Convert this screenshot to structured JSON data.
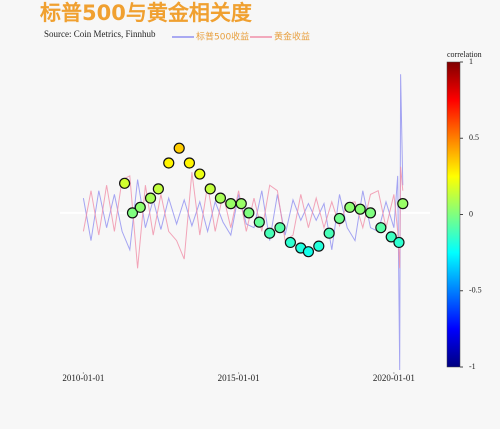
{
  "chart_data": {
    "type": "line-scatter",
    "title": "标普500与黄金相关度",
    "subtitle": "Source: Coin Metrics, Finnhub",
    "x": [
      "2010-01-01",
      "2010-04-01",
      "2010-07-01",
      "2010-10-01",
      "2011-01-01",
      "2011-04-01",
      "2011-07-01",
      "2011-10-01",
      "2012-01-01",
      "2012-04-01",
      "2012-07-01",
      "2012-10-01",
      "2013-01-01",
      "2013-04-01",
      "2013-07-01",
      "2013-10-01",
      "2014-01-01",
      "2014-04-01",
      "2014-07-01",
      "2014-10-01",
      "2015-01-01",
      "2015-04-01",
      "2015-07-01",
      "2015-10-01",
      "2016-01-01",
      "2016-04-01",
      "2016-07-01",
      "2016-10-01",
      "2017-01-01",
      "2017-04-01",
      "2017-07-01",
      "2017-10-01",
      "2018-01-01",
      "2018-04-01",
      "2018-07-01",
      "2018-10-01",
      "2019-01-01",
      "2019-04-01",
      "2019-07-01",
      "2019-10-01",
      "2020-01-01",
      "2020-02-15",
      "2020-03-10",
      "2020-03-20",
      "2020-04-15"
    ],
    "series": [
      {
        "name": "标普500收益",
        "color": "#8f8ff0",
        "values": [
          0.08,
          -0.15,
          0.12,
          -0.08,
          0.1,
          -0.1,
          -0.2,
          0.18,
          -0.08,
          0.07,
          -0.09,
          0.08,
          -0.06,
          0.07,
          -0.07,
          0.06,
          -0.1,
          0.06,
          -0.05,
          -0.12,
          0.1,
          -0.06,
          -0.08,
          0.12,
          -0.15,
          0.1,
          -0.12,
          0.07,
          -0.04,
          0.05,
          -0.04,
          0.05,
          -0.2,
          0.1,
          -0.08,
          -0.15,
          0.12,
          -0.08,
          -0.1,
          0.06,
          -0.08,
          0.2,
          -0.85,
          0.75,
          0.15
        ]
      },
      {
        "name": "黄金收益",
        "color": "#f08fa8",
        "values": [
          -0.1,
          0.12,
          -0.12,
          0.15,
          -0.1,
          0.18,
          0.2,
          -0.3,
          0.15,
          -0.12,
          0.1,
          -0.1,
          -0.15,
          -0.25,
          0.22,
          -0.12,
          0.15,
          -0.1,
          0.1,
          -0.08,
          0.12,
          -0.1,
          0.08,
          -0.1,
          0.15,
          0.12,
          -0.15,
          -0.12,
          0.1,
          -0.08,
          0.08,
          -0.08,
          0.06,
          -0.07,
          0.05,
          0.06,
          -0.08,
          0.1,
          0.12,
          -0.08,
          0.1,
          -0.1,
          -0.3,
          0.25,
          0.12
        ]
      }
    ],
    "scatter": {
      "x": [
        "2011-05-01",
        "2011-08-01",
        "2011-11-01",
        "2012-03-01",
        "2012-06-01",
        "2012-10-01",
        "2013-02-01",
        "2013-06-01",
        "2013-10-01",
        "2014-02-01",
        "2014-06-01",
        "2014-10-01",
        "2015-02-01",
        "2015-05-01",
        "2015-09-01",
        "2016-01-01",
        "2016-05-01",
        "2016-09-01",
        "2017-01-01",
        "2017-04-01",
        "2017-08-01",
        "2017-12-01",
        "2018-04-01",
        "2018-08-01",
        "2018-12-01",
        "2019-04-01",
        "2019-08-01",
        "2019-12-01",
        "2020-03-01",
        "2020-04-15"
      ],
      "values": [
        0.16,
        0,
        0.03,
        0.08,
        0.13,
        0.27,
        0.35,
        0.27,
        0.21,
        0.13,
        0.08,
        0.05,
        0.05,
        0,
        -0.05,
        -0.11,
        -0.08,
        -0.16,
        -0.19,
        -0.21,
        -0.18,
        -0.11,
        -0.03,
        0.03,
        0.02,
        0,
        -0.08,
        -0.13,
        -0.16,
        0.05
      ]
    },
    "colorbar": {
      "title": "correlation",
      "range": [
        -1,
        1
      ],
      "ticks": [
        1,
        0.5,
        0,
        -0.5,
        -1
      ],
      "colorscale": [
        [
          -1,
          "#000080"
        ],
        [
          -0.75,
          "#0000ff"
        ],
        [
          -0.25,
          "#00ffff"
        ],
        [
          0.25,
          "#ffff00"
        ],
        [
          0.75,
          "#ff0000"
        ],
        [
          1,
          "#800000"
        ]
      ]
    },
    "xlim": [
      "2009-04-01",
      "2021-03-01"
    ],
    "xticks": [
      "2010-01-01",
      "2015-01-01",
      "2020-01-01"
    ],
    "ylim": [
      -0.85,
      0.8
    ]
  }
}
